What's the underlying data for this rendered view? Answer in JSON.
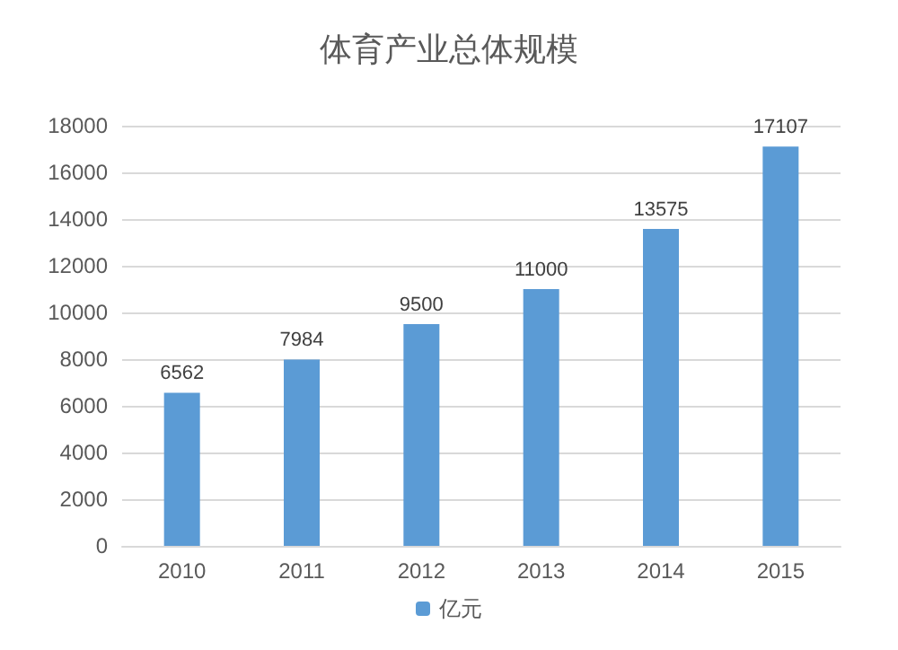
{
  "chart_data": {
    "type": "bar",
    "title": "体育产业总体规模",
    "categories": [
      "2010",
      "2011",
      "2012",
      "2013",
      "2014",
      "2015"
    ],
    "series": [
      {
        "name": "亿元",
        "color": "#5b9bd5",
        "values": [
          6562,
          7984,
          9500,
          11000,
          13575,
          17107
        ]
      }
    ],
    "ylim": [
      0,
      18000
    ],
    "yticks": [
      0,
      2000,
      4000,
      6000,
      8000,
      10000,
      12000,
      14000,
      16000,
      18000
    ],
    "grid": "y",
    "legend": "bottom",
    "data_labels": true
  }
}
